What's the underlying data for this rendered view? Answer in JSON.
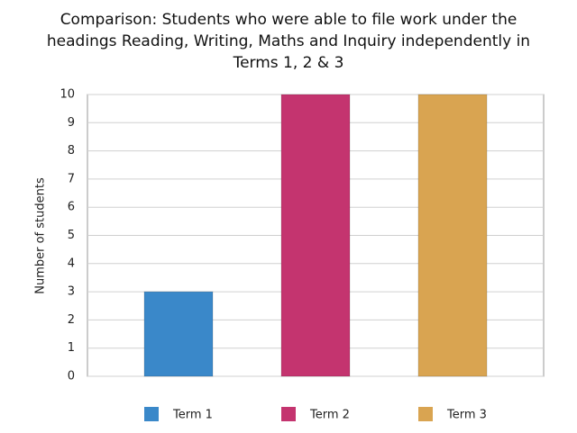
{
  "chart_data": {
    "type": "bar",
    "title": "Comparison: Students who were able to file work under the headings Reading, Writing, Maths and Inquiry independently in Terms 1, 2 & 3",
    "y_label": "Number of students",
    "categories": [
      null
    ],
    "series": [
      {
        "name": "Term 1",
        "color": "#3a88c9",
        "values": [
          3
        ]
      },
      {
        "name": "Term 2",
        "color": "#c4346f",
        "values": [
          10
        ]
      },
      {
        "name": "Term 3",
        "color": "#d9a451",
        "values": [
          10
        ]
      }
    ],
    "ylim": [
      0,
      10
    ],
    "yticks": [
      0,
      1,
      2,
      3,
      4,
      5,
      6,
      7,
      8,
      9,
      10
    ],
    "grid": true,
    "legend": "bottom"
  }
}
